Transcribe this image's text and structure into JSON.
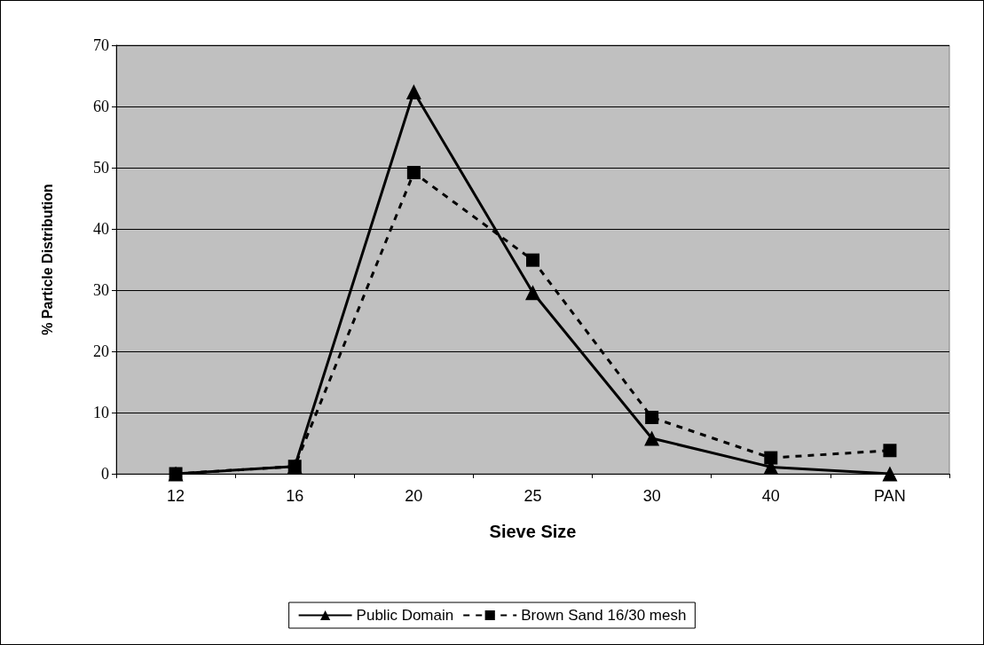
{
  "chart_data": {
    "type": "line",
    "xlabel": "Sieve Size",
    "ylabel": "% Particle Distribution",
    "categories": [
      "12",
      "16",
      "20",
      "25",
      "30",
      "40",
      "PAN"
    ],
    "series": [
      {
        "name": "Public Domain",
        "color": "#000000",
        "marker": "triangle",
        "line_style": "solid",
        "values": [
          0,
          1.2,
          62.4,
          29.6,
          5.8,
          1.1,
          0
        ]
      },
      {
        "name": "Brown Sand 16/30 mesh",
        "color": "#000000",
        "marker": "square",
        "line_style": "dashed",
        "values": [
          0,
          1.2,
          49.2,
          34.9,
          9.2,
          2.6,
          3.8
        ]
      }
    ],
    "ylim": [
      0,
      70
    ],
    "yticks": [
      0,
      10,
      20,
      30,
      40,
      50,
      60,
      70
    ],
    "grid": "y",
    "legend": "bottom"
  }
}
